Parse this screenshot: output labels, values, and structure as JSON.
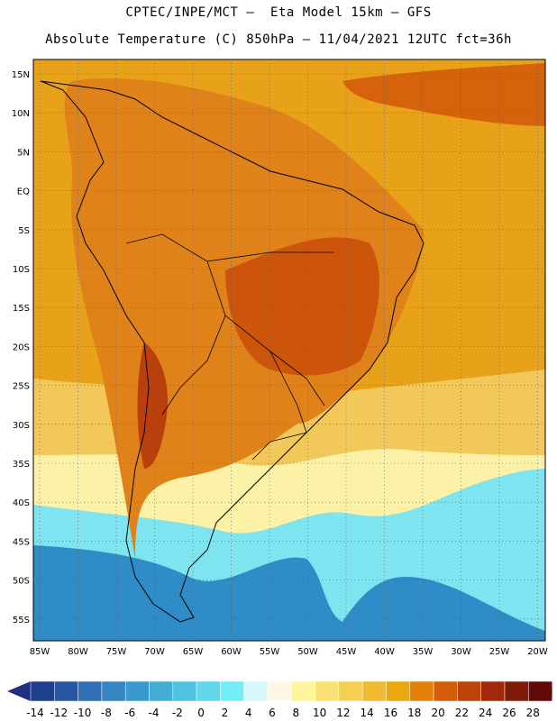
{
  "header": {
    "line1": "CPTEC/INPE/MCT –  Eta Model 15km – GFS",
    "line2": "Absolute Temperature (C) 850hPa – 11/04/2021 12UTC fct=36h"
  },
  "map": {
    "lat_labels": [
      "15N",
      "10N",
      "5N",
      "EQ",
      "5S",
      "10S",
      "15S",
      "20S",
      "25S",
      "30S",
      "35S",
      "40S",
      "45S",
      "50S",
      "55S"
    ],
    "lon_labels": [
      "85W",
      "80W",
      "75W",
      "70W",
      "65W",
      "60W",
      "55W",
      "50W",
      "45W",
      "40W",
      "35W",
      "30W",
      "25W",
      "20W"
    ],
    "regions": [
      {
        "name": "north-atlantic",
        "color": "#e8a21a"
      },
      {
        "name": "caribbean-hot",
        "color": "#d6620b"
      },
      {
        "name": "amazon",
        "color": "#e0821a"
      },
      {
        "name": "central-brazil-hot",
        "color": "#cc550b"
      },
      {
        "name": "andes-hot",
        "color": "#b9400d"
      },
      {
        "name": "southern-warm",
        "color": "#f2c85a"
      },
      {
        "name": "southern-cool",
        "color": "#fbf1a7"
      },
      {
        "name": "mid-lat-ocean",
        "color": "#7de4f0"
      },
      {
        "name": "sub-polar",
        "color": "#2f8cc6"
      }
    ]
  },
  "colorbar": {
    "labels": [
      "-14",
      "-12",
      "-10",
      "-8",
      "-6",
      "-4",
      "-2",
      "0",
      "2",
      "4",
      "6",
      "8",
      "10",
      "12",
      "14",
      "16",
      "18",
      "20",
      "22",
      "24",
      "26",
      "28"
    ],
    "colors": [
      "#1f3f8f",
      "#2956a0",
      "#2f6fb3",
      "#3585c2",
      "#3a99cc",
      "#43acd3",
      "#4fc2e0",
      "#60d7ed",
      "#73eef7",
      "#d6f7fb",
      "#fff8e6",
      "#fff59c",
      "#fbe276",
      "#f5cf52",
      "#f0bb33",
      "#eaa80f",
      "#e47f08",
      "#d35d09",
      "#bd420b",
      "#a0290b",
      "#801b0a",
      "#620a0a"
    ],
    "under_color": "#1f2f7f",
    "over_color": "#6a0015"
  }
}
